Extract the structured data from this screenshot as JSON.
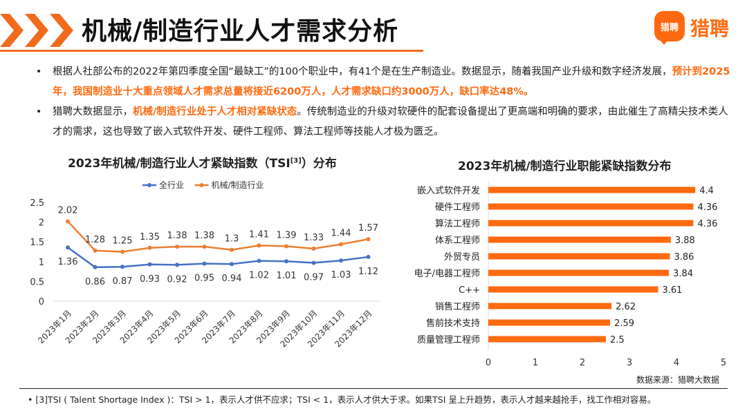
{
  "page": {
    "title": "机械/制造行业人才需求分析",
    "logo_badge": "猎聘",
    "logo_text": "猎聘",
    "source": "数据来源：猎聘大数据",
    "footnote": "• [3]TSI ( Talent Shortage Index )：TSI > 1，表示人才供不应求；TSI < 1，表示人才供大于求。如果TSI 呈上升趋势，表示人才越来越抢手，找工作相对容易。",
    "colors": {
      "accent": "#f26b1d",
      "blue": "#4472c4",
      "orange": "#ed7d31"
    }
  },
  "bullets": [
    {
      "pre": "根据人社部公布的2022年第四季度全国“最缺工”的100个职业中，有41个是在生产制造业。数据显示，随着我国产业升级和数字经济发展，",
      "highlight": "预计到2025年，我国制造业十大重点领域人才需求总量将接近6200万人，人才需求缺口约3000万人，缺口率达48%。",
      "post": ""
    },
    {
      "pre": "猎聘大数据显示，",
      "highlight": "机械/制造行业处于人才相对紧缺状态",
      "post": "。传统制造业的升级对软硬件的配套设备提出了更高端和明确的要求，由此催生了高精尖技术类人才的需求，这也导致了嵌入式软件开发、硬件工程师、算法工程师等技能人才极为匮乏。"
    }
  ],
  "chart_data": [
    {
      "type": "line",
      "title_main": "2023年机械/制造行业人才紧缺指数（TSI",
      "title_sup": "[3]",
      "title_end": "）分布",
      "categories": [
        "2023年1月",
        "2023年2月",
        "2023年3月",
        "2023年4月",
        "2023年5月",
        "2023年6月",
        "2023年7月",
        "2023年8月",
        "2023年9月",
        "2023年10月",
        "2023年11月",
        "2023年12月"
      ],
      "series": [
        {
          "name": "全行业",
          "color": "#4472c4",
          "values": [
            1.36,
            0.86,
            0.87,
            0.93,
            0.92,
            0.95,
            0.94,
            1.02,
            1.01,
            0.97,
            1.03,
            1.12
          ]
        },
        {
          "name": "机械/制造行业",
          "color": "#ed7d31",
          "values": [
            2.02,
            1.28,
            1.25,
            1.35,
            1.38,
            1.38,
            1.3,
            1.41,
            1.39,
            1.33,
            1.44,
            1.57
          ]
        }
      ],
      "yticks": [
        "0",
        "0.5",
        "1",
        "1.5",
        "2",
        "2.5"
      ],
      "ylim": [
        0,
        2.5
      ],
      "legend": "top"
    },
    {
      "type": "bar",
      "orientation": "horizontal",
      "title": "2023年机械/制造行业职能紧缺指数分布",
      "categories": [
        "嵌入式软件开发",
        "硬件工程师",
        "算法工程师",
        "体系工程师",
        "外贸专员",
        "电子/电器工程师",
        "C++",
        "销售工程师",
        "售前技术支持",
        "质量管理工程师"
      ],
      "values": [
        4.4,
        4.36,
        4.36,
        3.88,
        3.86,
        3.84,
        3.61,
        2.62,
        2.59,
        2.5
      ],
      "value_labels": [
        "4.4",
        "4.36",
        "4.36",
        "3.88",
        "3.86",
        "3.84",
        "3.61",
        "2.62",
        "2.59",
        "2.5"
      ],
      "xticks": [
        "0",
        "1",
        "2",
        "3",
        "4",
        "5"
      ],
      "xlim": [
        0,
        5
      ],
      "color": "#ff6a10"
    }
  ]
}
